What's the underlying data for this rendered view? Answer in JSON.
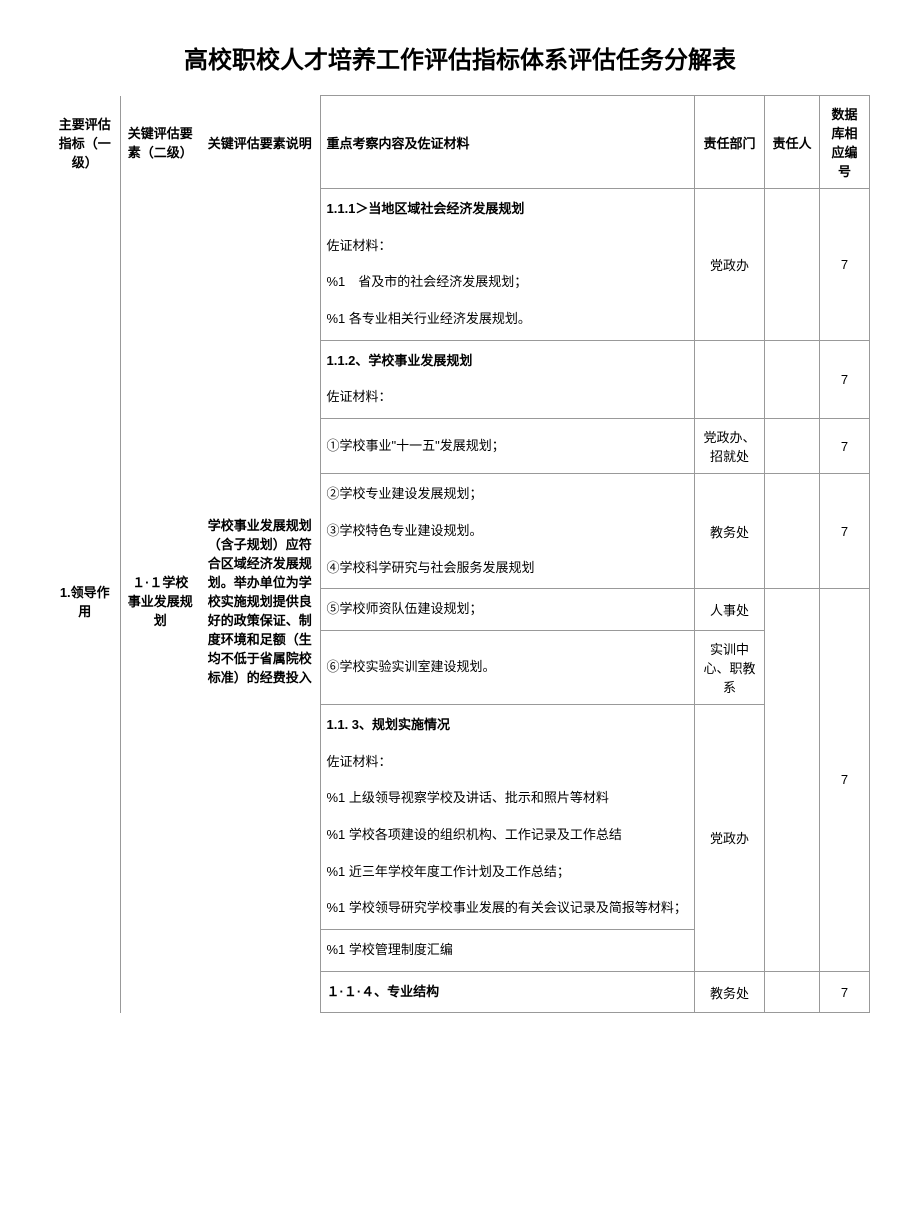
{
  "title": "高校职校人才培养工作评估指标体系评估任务分解表",
  "headers": {
    "l1": "主要评估指标（一级）",
    "l2": "关键评估要素（二级）",
    "desc": "关键评估要素说明",
    "content": "重点考察内容及佐证材料",
    "dept": "责任部门",
    "person": "责任人",
    "num": "数据库相应编号"
  },
  "level1": "1.领导作用",
  "level2": "１·１学校事业发展规划",
  "desc": "学校事业发展规划（含子规划）应符合区域经济发展规划。举办单位为学校实施规划提供良好的政策保证、制度环境和足额（生均不低于省属院校标准）的经费投入",
  "rows": [
    {
      "content_lines": [
        {
          "bold": true,
          "text": "1.1.1＞当地区域社会经济发展规划"
        },
        {
          "bold": false,
          "text": "佐证材料："
        },
        {
          "bold": false,
          "text": "%1　省及市的社会经济发展规划；"
        },
        {
          "bold": false,
          "text": "%1 各专业相关行业经济发展规划。"
        }
      ],
      "dept": "党政办",
      "num": "7"
    },
    {
      "content_lines": [
        {
          "bold": true,
          "text": "1.1.2、学校事业发展规划"
        },
        {
          "bold": false,
          "text": "佐证材料："
        }
      ],
      "dept": "",
      "num": "7"
    },
    {
      "content_lines": [
        {
          "bold": false,
          "text": "①学校事业\"十一五\"发展规划；"
        }
      ],
      "dept": "党政办、招就处",
      "num": "7"
    },
    {
      "content_lines": [
        {
          "bold": false,
          "text": "②学校专业建设发展规划；"
        },
        {
          "bold": false,
          "text": "③学校特色专业建设规划。"
        },
        {
          "bold": false,
          "text": "④学校科学研究与社会服务发展规划"
        }
      ],
      "dept": "教务处",
      "num": "7"
    },
    {
      "content_lines": [
        {
          "bold": false,
          "text": "⑤学校师资队伍建设规划；"
        }
      ],
      "dept": "人事处",
      "num_rowspan": true
    },
    {
      "content_lines": [
        {
          "bold": false,
          "text": "⑥学校实验实训室建设规划。"
        }
      ],
      "dept": "实训中心、职教系"
    },
    {
      "content_lines": [
        {
          "bold": true,
          "text": "1.1. 3、规划实施情况"
        },
        {
          "bold": false,
          "text": "佐证材料："
        },
        {
          "bold": false,
          "text": "%1 上级领导视察学校及讲话、批示和照片等材料"
        },
        {
          "bold": false,
          "text": "%1 学校各项建设的组织机构、工作记录及工作总结"
        },
        {
          "bold": false,
          "text": "%1 近三年学校年度工作计划及工作总结；"
        },
        {
          "bold": false,
          "text": "%1 学校领导研究学校事业发展的有关会议记录及简报等材料；"
        }
      ],
      "dept": "党政办",
      "num": "7",
      "num_rowspan_end": true
    },
    {
      "content_lines": [
        {
          "bold": false,
          "text": "%1 学校管理制度汇编"
        }
      ],
      "dept_continue": true
    },
    {
      "content_lines": [
        {
          "bold": true,
          "text": "１·１·４、专业结构"
        }
      ],
      "dept": "教务处",
      "num": "7"
    }
  ]
}
